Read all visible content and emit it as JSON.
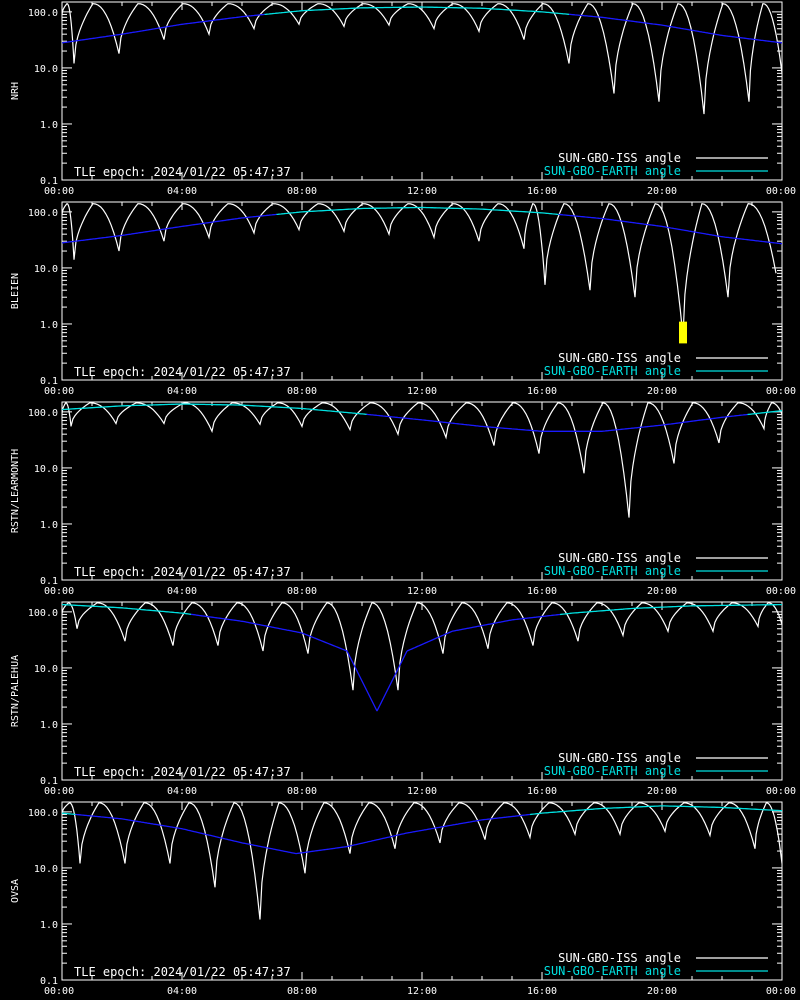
{
  "colors": {
    "background": "#000000",
    "axes": "#ffffff",
    "iss": "#ffffff",
    "earth_cyan": "#00e0e0",
    "earth_blue": "#1a1aff",
    "marker": "#ffff00"
  },
  "legend": {
    "iss_label": "SUN-GBO-ISS angle",
    "earth_label": "SUN-GBO-EARTH angle",
    "placement": "bottom-right"
  },
  "tle_text": "TLE epoch: 2024/01/22 05:47:37",
  "chart_data": [
    {
      "type": "line",
      "ylabel": "NRH",
      "y_scale": "log",
      "ylim": [
        0.1,
        150
      ],
      "xlim_hours": [
        0,
        24
      ],
      "x_ticks": [
        "00:00",
        "04:00",
        "08:00",
        "12:00",
        "16:00",
        "20:00",
        "00:00"
      ],
      "y_ticks": [
        "0.1",
        "1.0",
        "10.0",
        "100.0"
      ],
      "earth_angle": [
        {
          "hour": 0,
          "deg": 28
        },
        {
          "hour": 2,
          "deg": 40
        },
        {
          "hour": 4,
          "deg": 60
        },
        {
          "hour": 6,
          "deg": 82
        },
        {
          "hour": 8,
          "deg": 105
        },
        {
          "hour": 10,
          "deg": 118
        },
        {
          "hour": 12,
          "deg": 122
        },
        {
          "hour": 14,
          "deg": 116
        },
        {
          "hour": 16,
          "deg": 100
        },
        {
          "hour": 18,
          "deg": 80
        },
        {
          "hour": 20,
          "deg": 58
        },
        {
          "hour": 22,
          "deg": 38
        },
        {
          "hour": 24,
          "deg": 28
        }
      ],
      "earth_cyan_above_deg": 90,
      "iss_period_hours": 1.5,
      "iss_minima": [
        {
          "hour": 0.4,
          "deg": 12
        },
        {
          "hour": 1.9,
          "deg": 18
        },
        {
          "hour": 3.4,
          "deg": 32
        },
        {
          "hour": 4.9,
          "deg": 40
        },
        {
          "hour": 6.4,
          "deg": 50
        },
        {
          "hour": 7.9,
          "deg": 60
        },
        {
          "hour": 9.4,
          "deg": 55
        },
        {
          "hour": 10.9,
          "deg": 58
        },
        {
          "hour": 12.4,
          "deg": 50
        },
        {
          "hour": 13.9,
          "deg": 45
        },
        {
          "hour": 15.4,
          "deg": 32
        },
        {
          "hour": 16.9,
          "deg": 12
        },
        {
          "hour": 18.4,
          "deg": 3.5
        },
        {
          "hour": 19.9,
          "deg": 2.5
        },
        {
          "hour": 21.4,
          "deg": 1.5
        },
        {
          "hour": 22.9,
          "deg": 2.5
        },
        {
          "hour": 24.0,
          "deg": 8
        }
      ],
      "iss_peak_deg": 140,
      "marker": null
    },
    {
      "type": "line",
      "ylabel": "BLEIEN",
      "y_scale": "log",
      "ylim": [
        0.1,
        150
      ],
      "xlim_hours": [
        0,
        24
      ],
      "x_ticks": [
        "00:00",
        "04:00",
        "08:00",
        "12:00",
        "16:00",
        "20:00",
        "00:00"
      ],
      "y_ticks": [
        "0.1",
        "1.0",
        "10.0",
        "100.0"
      ],
      "earth_angle": [
        {
          "hour": 0,
          "deg": 28
        },
        {
          "hour": 2,
          "deg": 38
        },
        {
          "hour": 4,
          "deg": 55
        },
        {
          "hour": 6,
          "deg": 78
        },
        {
          "hour": 8,
          "deg": 100
        },
        {
          "hour": 10,
          "deg": 115
        },
        {
          "hour": 12,
          "deg": 120
        },
        {
          "hour": 14,
          "deg": 112
        },
        {
          "hour": 16,
          "deg": 96
        },
        {
          "hour": 18,
          "deg": 76
        },
        {
          "hour": 20,
          "deg": 55
        },
        {
          "hour": 22,
          "deg": 36
        },
        {
          "hour": 24,
          "deg": 27
        }
      ],
      "earth_cyan_above_deg": 90,
      "iss_period_hours": 1.5,
      "iss_minima": [
        {
          "hour": 0.4,
          "deg": 14
        },
        {
          "hour": 1.9,
          "deg": 20
        },
        {
          "hour": 3.4,
          "deg": 30
        },
        {
          "hour": 4.9,
          "deg": 35
        },
        {
          "hour": 6.4,
          "deg": 42
        },
        {
          "hour": 7.9,
          "deg": 48
        },
        {
          "hour": 9.4,
          "deg": 45
        },
        {
          "hour": 10.9,
          "deg": 40
        },
        {
          "hour": 12.4,
          "deg": 35
        },
        {
          "hour": 13.9,
          "deg": 30
        },
        {
          "hour": 15.4,
          "deg": 22
        },
        {
          "hour": 16.1,
          "deg": 5
        },
        {
          "hour": 17.6,
          "deg": 4
        },
        {
          "hour": 19.1,
          "deg": 3
        },
        {
          "hour": 20.7,
          "deg": 0.6
        },
        {
          "hour": 22.2,
          "deg": 3
        },
        {
          "hour": 23.8,
          "deg": 8
        }
      ],
      "iss_peak_deg": 140,
      "marker": {
        "hour": 20.7,
        "deg_low": 0.45,
        "deg_high": 1.1
      }
    },
    {
      "type": "line",
      "ylabel": "RSTN/LEARMONTH",
      "y_scale": "log",
      "ylim": [
        0.1,
        150
      ],
      "xlim_hours": [
        0,
        24
      ],
      "x_ticks": [
        "00:00",
        "04:00",
        "08:00",
        "12:00",
        "16:00",
        "20:00",
        "00:00"
      ],
      "y_ticks": [
        "0.1",
        "1.0",
        "10.0",
        "100.0"
      ],
      "earth_angle": [
        {
          "hour": 0,
          "deg": 110
        },
        {
          "hour": 2,
          "deg": 128
        },
        {
          "hour": 4,
          "deg": 138
        },
        {
          "hour": 6,
          "deg": 132
        },
        {
          "hour": 8,
          "deg": 115
        },
        {
          "hour": 10,
          "deg": 92
        },
        {
          "hour": 12,
          "deg": 72
        },
        {
          "hour": 14,
          "deg": 55
        },
        {
          "hour": 16,
          "deg": 45
        },
        {
          "hour": 18,
          "deg": 45
        },
        {
          "hour": 20,
          "deg": 58
        },
        {
          "hour": 22,
          "deg": 80
        },
        {
          "hour": 24,
          "deg": 105
        }
      ],
      "earth_cyan_above_deg": 90,
      "iss_period_hours": 1.5,
      "iss_minima": [
        {
          "hour": 0.3,
          "deg": 55
        },
        {
          "hour": 1.8,
          "deg": 62
        },
        {
          "hour": 3.4,
          "deg": 62
        },
        {
          "hour": 5.0,
          "deg": 45
        },
        {
          "hour": 6.6,
          "deg": 60
        },
        {
          "hour": 8.0,
          "deg": 55
        },
        {
          "hour": 9.6,
          "deg": 48
        },
        {
          "hour": 11.2,
          "deg": 40
        },
        {
          "hour": 12.8,
          "deg": 35
        },
        {
          "hour": 14.4,
          "deg": 25
        },
        {
          "hour": 15.9,
          "deg": 18
        },
        {
          "hour": 17.4,
          "deg": 8
        },
        {
          "hour": 18.9,
          "deg": 1.3
        },
        {
          "hour": 20.4,
          "deg": 12
        },
        {
          "hour": 21.9,
          "deg": 28
        },
        {
          "hour": 23.4,
          "deg": 50
        },
        {
          "hour": 24.0,
          "deg": 90
        }
      ],
      "iss_peak_deg": 145,
      "marker": null
    },
    {
      "type": "line",
      "ylabel": "RSTN/PALEHUA",
      "y_scale": "log",
      "ylim": [
        0.1,
        150
      ],
      "xlim_hours": [
        0,
        24
      ],
      "x_ticks": [
        "00:00",
        "04:00",
        "08:00",
        "12:00",
        "16:00",
        "20:00",
        "00:00"
      ],
      "y_ticks": [
        "0.1",
        "1.0",
        "10.0",
        "100.0"
      ],
      "earth_angle": [
        {
          "hour": 0,
          "deg": 135
        },
        {
          "hour": 2,
          "deg": 118
        },
        {
          "hour": 4,
          "deg": 95
        },
        {
          "hour": 6,
          "deg": 68
        },
        {
          "hour": 8,
          "deg": 42
        },
        {
          "hour": 9.5,
          "deg": 20
        },
        {
          "hour": 10.5,
          "deg": 1.7
        },
        {
          "hour": 11.5,
          "deg": 20
        },
        {
          "hour": 13,
          "deg": 45
        },
        {
          "hour": 15,
          "deg": 72
        },
        {
          "hour": 17,
          "deg": 95
        },
        {
          "hour": 19,
          "deg": 115
        },
        {
          "hour": 21,
          "deg": 128
        },
        {
          "hour": 24,
          "deg": 135
        }
      ],
      "earth_cyan_above_deg": 90,
      "iss_period_hours": 1.5,
      "iss_minima": [
        {
          "hour": 0.5,
          "deg": 50
        },
        {
          "hour": 2.1,
          "deg": 30
        },
        {
          "hour": 3.7,
          "deg": 25
        },
        {
          "hour": 5.2,
          "deg": 25
        },
        {
          "hour": 6.7,
          "deg": 20
        },
        {
          "hour": 8.2,
          "deg": 18
        },
        {
          "hour": 9.7,
          "deg": 4
        },
        {
          "hour": 11.2,
          "deg": 4
        },
        {
          "hour": 12.7,
          "deg": 18
        },
        {
          "hour": 14.2,
          "deg": 22
        },
        {
          "hour": 15.7,
          "deg": 25
        },
        {
          "hour": 17.2,
          "deg": 30
        },
        {
          "hour": 18.7,
          "deg": 38
        },
        {
          "hour": 20.2,
          "deg": 45
        },
        {
          "hour": 21.7,
          "deg": 45
        },
        {
          "hour": 23.2,
          "deg": 55
        },
        {
          "hour": 24.0,
          "deg": 60
        }
      ],
      "iss_peak_deg": 145,
      "marker": null
    },
    {
      "type": "line",
      "ylabel": "OVSA",
      "y_scale": "log",
      "ylim": [
        0.1,
        150
      ],
      "xlim_hours": [
        0,
        24
      ],
      "x_ticks": [
        "00:00",
        "04:00",
        "08:00",
        "12:00",
        "16:00",
        "20:00",
        "00:00"
      ],
      "y_ticks": [
        "0.1",
        "1.0",
        "10.0",
        "100.0"
      ],
      "earth_angle": [
        {
          "hour": 0,
          "deg": 95
        },
        {
          "hour": 2,
          "deg": 75
        },
        {
          "hour": 4,
          "deg": 50
        },
        {
          "hour": 6,
          "deg": 28
        },
        {
          "hour": 7.8,
          "deg": 18
        },
        {
          "hour": 9.5,
          "deg": 24
        },
        {
          "hour": 11.5,
          "deg": 42
        },
        {
          "hour": 14,
          "deg": 72
        },
        {
          "hour": 16,
          "deg": 95
        },
        {
          "hour": 18,
          "deg": 115
        },
        {
          "hour": 20,
          "deg": 128
        },
        {
          "hour": 22,
          "deg": 120
        },
        {
          "hour": 24,
          "deg": 105
        }
      ],
      "earth_cyan_above_deg": 90,
      "iss_period_hours": 1.5,
      "iss_minima": [
        {
          "hour": 0.6,
          "deg": 12
        },
        {
          "hour": 2.1,
          "deg": 12
        },
        {
          "hour": 3.6,
          "deg": 12
        },
        {
          "hour": 5.1,
          "deg": 4.5
        },
        {
          "hour": 6.6,
          "deg": 1.2
        },
        {
          "hour": 8.1,
          "deg": 8
        },
        {
          "hour": 9.6,
          "deg": 18
        },
        {
          "hour": 11.1,
          "deg": 22
        },
        {
          "hour": 12.6,
          "deg": 28
        },
        {
          "hour": 14.1,
          "deg": 32
        },
        {
          "hour": 15.6,
          "deg": 35
        },
        {
          "hour": 17.1,
          "deg": 40
        },
        {
          "hour": 18.6,
          "deg": 40
        },
        {
          "hour": 20.1,
          "deg": 45
        },
        {
          "hour": 21.6,
          "deg": 38
        },
        {
          "hour": 23.1,
          "deg": 22
        },
        {
          "hour": 24.0,
          "deg": 12
        }
      ],
      "iss_peak_deg": 145,
      "marker": null
    }
  ]
}
